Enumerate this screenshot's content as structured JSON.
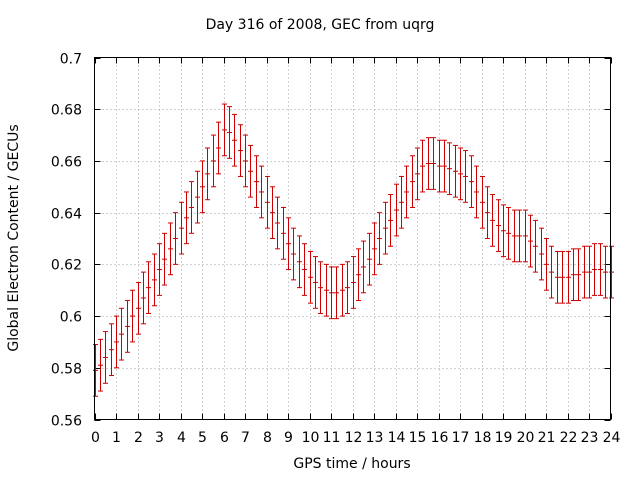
{
  "chart_data": {
    "type": "line",
    "style": "errorbars",
    "title": "Day 316 of 2008, GEC from uqrg",
    "xlabel": "GPS time / hours",
    "ylabel": "Global Electron Content / GECUs",
    "xlim": [
      0,
      24
    ],
    "ylim": [
      0.56,
      0.7
    ],
    "xticks": [
      "0",
      "1",
      "2",
      "3",
      "4",
      "5",
      "6",
      "7",
      "8",
      "9",
      "10",
      "11",
      "12",
      "13",
      "14",
      "15",
      "16",
      "17",
      "18",
      "19",
      "20",
      "21",
      "22",
      "23",
      "24"
    ],
    "yticks": [
      "0.56",
      "0.58",
      "0.6",
      "0.62",
      "0.64",
      "0.66",
      "0.68",
      "0.7"
    ],
    "grid": true,
    "color": "#cc0000",
    "error": 0.01,
    "series": [
      {
        "name": "GEC",
        "x": [
          0,
          0.25,
          0.5,
          0.75,
          1,
          1.25,
          1.5,
          1.75,
          2,
          2.25,
          2.5,
          2.75,
          3,
          3.25,
          3.5,
          3.75,
          4,
          4.25,
          4.5,
          4.75,
          5,
          5.25,
          5.5,
          5.75,
          6,
          6.25,
          6.5,
          6.75,
          7,
          7.25,
          7.5,
          7.75,
          8,
          8.25,
          8.5,
          8.75,
          9,
          9.25,
          9.5,
          9.75,
          10,
          10.25,
          10.5,
          10.75,
          11,
          11.25,
          11.5,
          11.75,
          12,
          12.25,
          12.5,
          12.75,
          13,
          13.25,
          13.5,
          13.75,
          14,
          14.25,
          14.5,
          14.75,
          15,
          15.25,
          15.5,
          15.75,
          16,
          16.25,
          16.5,
          16.75,
          17,
          17.25,
          17.5,
          17.75,
          18,
          18.25,
          18.5,
          18.75,
          19,
          19.25,
          19.5,
          19.75,
          20,
          20.25,
          20.5,
          20.75,
          21,
          21.25,
          21.5,
          21.75,
          22,
          22.25,
          22.5,
          22.75,
          23,
          23.25,
          23.5,
          23.75,
          24
        ],
        "values": [
          0.579,
          0.581,
          0.584,
          0.587,
          0.59,
          0.593,
          0.596,
          0.6,
          0.603,
          0.607,
          0.611,
          0.614,
          0.618,
          0.622,
          0.626,
          0.63,
          0.634,
          0.638,
          0.642,
          0.646,
          0.65,
          0.655,
          0.66,
          0.665,
          0.672,
          0.671,
          0.668,
          0.664,
          0.66,
          0.656,
          0.652,
          0.648,
          0.644,
          0.64,
          0.636,
          0.632,
          0.628,
          0.624,
          0.621,
          0.618,
          0.615,
          0.613,
          0.611,
          0.61,
          0.609,
          0.609,
          0.61,
          0.611,
          0.613,
          0.616,
          0.619,
          0.622,
          0.626,
          0.63,
          0.634,
          0.637,
          0.641,
          0.644,
          0.648,
          0.652,
          0.655,
          0.658,
          0.659,
          0.659,
          0.658,
          0.658,
          0.657,
          0.656,
          0.655,
          0.654,
          0.652,
          0.648,
          0.644,
          0.64,
          0.637,
          0.635,
          0.633,
          0.632,
          0.631,
          0.631,
          0.631,
          0.629,
          0.627,
          0.624,
          0.62,
          0.617,
          0.615,
          0.615,
          0.615,
          0.616,
          0.616,
          0.617,
          0.617,
          0.618,
          0.618,
          0.617,
          0.617
        ]
      }
    ]
  }
}
